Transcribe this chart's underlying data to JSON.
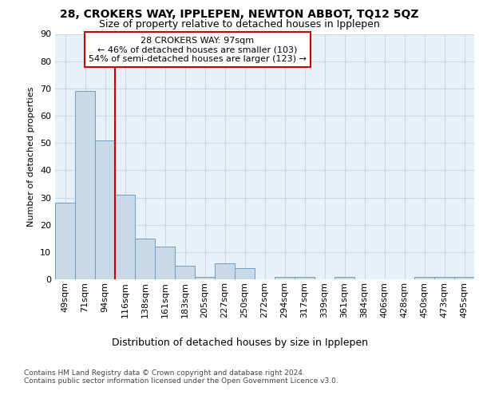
{
  "title1": "28, CROKERS WAY, IPPLEPEN, NEWTON ABBOT, TQ12 5QZ",
  "title2": "Size of property relative to detached houses in Ipplepen",
  "xlabel": "Distribution of detached houses by size in Ipplepen",
  "ylabel": "Number of detached properties",
  "categories": [
    "49sqm",
    "71sqm",
    "94sqm",
    "116sqm",
    "138sqm",
    "161sqm",
    "183sqm",
    "205sqm",
    "227sqm",
    "250sqm",
    "272sqm",
    "294sqm",
    "317sqm",
    "339sqm",
    "361sqm",
    "384sqm",
    "406sqm",
    "428sqm",
    "450sqm",
    "473sqm",
    "495sqm"
  ],
  "values": [
    28,
    69,
    51,
    31,
    15,
    12,
    5,
    1,
    6,
    4,
    0,
    1,
    1,
    0,
    1,
    0,
    0,
    0,
    1,
    1,
    1
  ],
  "bar_color": "#c9d9e8",
  "bar_edge_color": "#6a9ec4",
  "vline_x": 2.5,
  "vline_color": "#cc0000",
  "annotation_title": "28 CROKERS WAY: 97sqm",
  "annotation_line1": "← 46% of detached houses are smaller (103)",
  "annotation_line2": "54% of semi-detached houses are larger (123) →",
  "annotation_box_color": "#cc0000",
  "ylim": [
    0,
    90
  ],
  "yticks": [
    0,
    10,
    20,
    30,
    40,
    50,
    60,
    70,
    80,
    90
  ],
  "grid_color": "#c8d8e8",
  "bg_color": "#e8f0f8",
  "footer": "Contains HM Land Registry data © Crown copyright and database right 2024.\nContains public sector information licensed under the Open Government Licence v3.0.",
  "title1_fontsize": 10,
  "title2_fontsize": 9,
  "xlabel_fontsize": 9,
  "ylabel_fontsize": 8,
  "tick_fontsize": 8,
  "annotation_fontsize": 8,
  "footer_fontsize": 6.5
}
